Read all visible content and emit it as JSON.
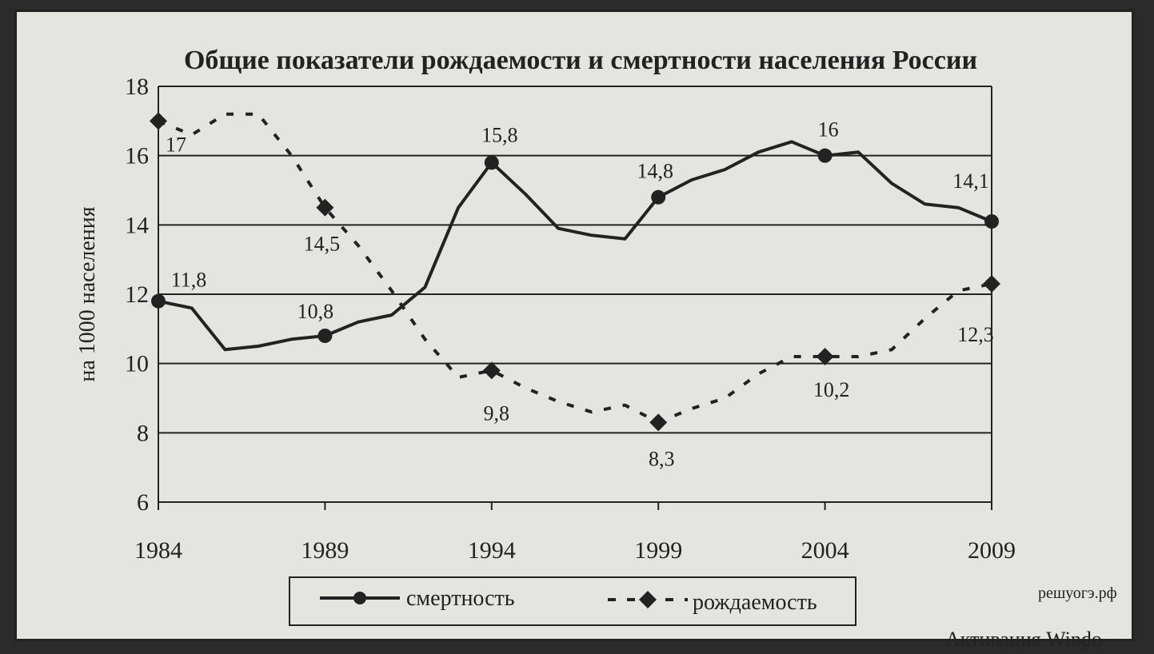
{
  "chart_data": {
    "type": "line",
    "title": "Общие показатели рождаемости и смертности населения России",
    "ylabel": "на 1000 населения",
    "xlabel": "",
    "ylim": [
      6,
      18
    ],
    "xlim": [
      1984,
      2009
    ],
    "y_ticks": [
      "6",
      "8",
      "10",
      "12",
      "14",
      "16",
      "18"
    ],
    "x_ticks": [
      "1984",
      "1989",
      "1994",
      "1999",
      "2004",
      "2009"
    ],
    "grid": "horizontal",
    "legend_position": "bottom",
    "series": [
      {
        "name": "смертность",
        "style": "solid",
        "marker": "circle",
        "color": "#222222",
        "x": [
          1984,
          1985,
          1986,
          1987,
          1988,
          1989,
          1990,
          1991,
          1992,
          1993,
          1994,
          1995,
          1996,
          1997,
          1998,
          1999,
          2000,
          2001,
          2002,
          2003,
          2004,
          2005,
          2006,
          2007,
          2008,
          2009
        ],
        "y": [
          11.8,
          11.6,
          10.4,
          10.5,
          10.7,
          10.8,
          11.2,
          11.4,
          12.2,
          14.5,
          15.8,
          14.9,
          13.9,
          13.7,
          13.6,
          14.8,
          15.3,
          15.6,
          16.1,
          16.4,
          16.0,
          16.1,
          15.2,
          14.6,
          14.5,
          14.1
        ],
        "markers_at": [
          1984,
          1989,
          1994,
          1999,
          2004,
          2009
        ],
        "labels": [
          {
            "x": 1984,
            "text": "11,8"
          },
          {
            "x": 1989,
            "text": "10,8"
          },
          {
            "x": 1994,
            "text": "15,8"
          },
          {
            "x": 1999,
            "text": "14,8"
          },
          {
            "x": 2004,
            "text": "16"
          },
          {
            "x": 2009,
            "text": "14,1"
          }
        ]
      },
      {
        "name": "рождаемость",
        "style": "dashed",
        "marker": "diamond",
        "color": "#222222",
        "x": [
          1984,
          1985,
          1986,
          1987,
          1988,
          1989,
          1990,
          1991,
          1992,
          1993,
          1994,
          1995,
          1996,
          1997,
          1998,
          1999,
          2000,
          2001,
          2002,
          2003,
          2004,
          2005,
          2006,
          2007,
          2008,
          2009
        ],
        "y": [
          17.0,
          16.6,
          17.2,
          17.2,
          16.0,
          14.5,
          13.4,
          12.1,
          10.7,
          9.6,
          9.8,
          9.3,
          8.9,
          8.6,
          8.8,
          8.3,
          8.7,
          9.0,
          9.7,
          10.2,
          10.2,
          10.2,
          10.4,
          11.3,
          12.1,
          12.3
        ],
        "markers_at": [
          1984,
          1989,
          1994,
          1999,
          2004,
          2009
        ],
        "labels": [
          {
            "x": 1984,
            "text": "17"
          },
          {
            "x": 1989,
            "text": "14,5"
          },
          {
            "x": 1994,
            "text": "9,8"
          },
          {
            "x": 1999,
            "text": "8,3"
          },
          {
            "x": 2004,
            "text": "10,2"
          },
          {
            "x": 2009,
            "text": "12,3"
          }
        ]
      }
    ]
  },
  "watermark": {
    "site": "решуогэ.рф",
    "windows": "Активация Windo"
  }
}
